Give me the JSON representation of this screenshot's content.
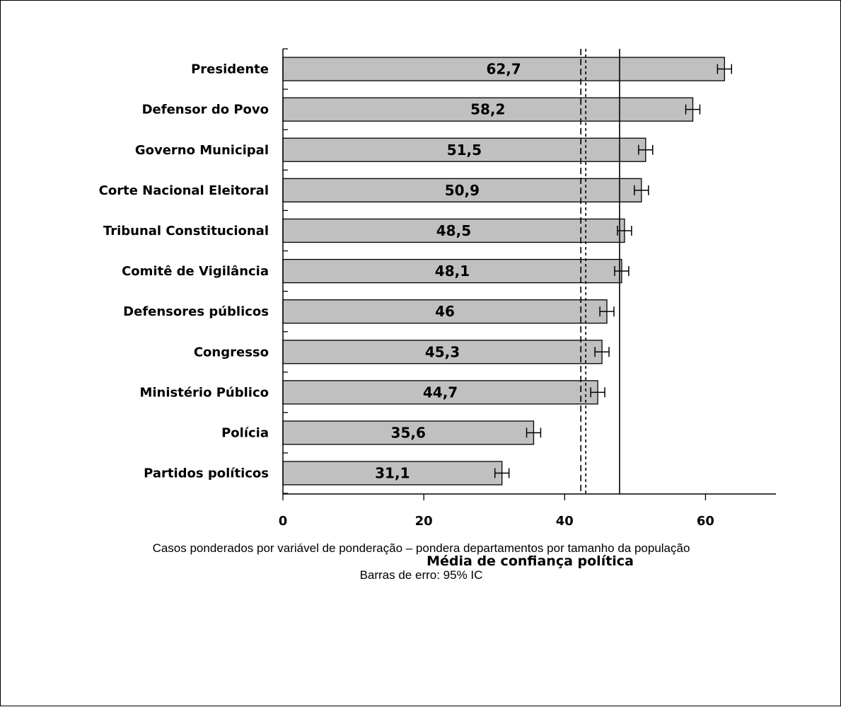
{
  "chart_data": {
    "type": "bar",
    "orientation": "horizontal",
    "categories": [
      "Presidente",
      "Defensor do Povo",
      "Governo Municipal",
      "Corte Nacional Eleitoral",
      "Tribunal Constitucional",
      "Comitê de Vigilância",
      "Defensores públicos",
      "Congresso",
      "Ministério Público",
      "Polícia",
      "Partidos políticos"
    ],
    "values": [
      62.7,
      58.2,
      51.5,
      50.9,
      48.5,
      48.1,
      46,
      45.3,
      44.7,
      35.6,
      31.1
    ],
    "value_labels": [
      "62,7",
      "58,2",
      "51,5",
      "50,9",
      "48,5",
      "48,1",
      "46",
      "45,3",
      "44,7",
      "35,6",
      "31,1"
    ],
    "error_margin": [
      1.0,
      1.0,
      1.0,
      1.0,
      1.0,
      1.0,
      1.0,
      1.0,
      1.0,
      1.0,
      1.0
    ],
    "reference_lines": [
      {
        "style": "solid",
        "value": 47.8
      },
      {
        "style": "long-dash",
        "value": 42.3
      },
      {
        "style": "short-dash",
        "value": 43.0
      }
    ],
    "xlim": [
      0,
      70
    ],
    "xticks": [
      0,
      20,
      40,
      60
    ],
    "xlabel": "Média de confiança política",
    "ylabel": "",
    "title": "",
    "grid": false,
    "bar_color": "#c0c0c0"
  },
  "notes": {
    "line1": "Casos ponderados por variável de ponderação – pondera departamentos por tamanho da população",
    "line2": "Barras de erro: 95% IC"
  }
}
